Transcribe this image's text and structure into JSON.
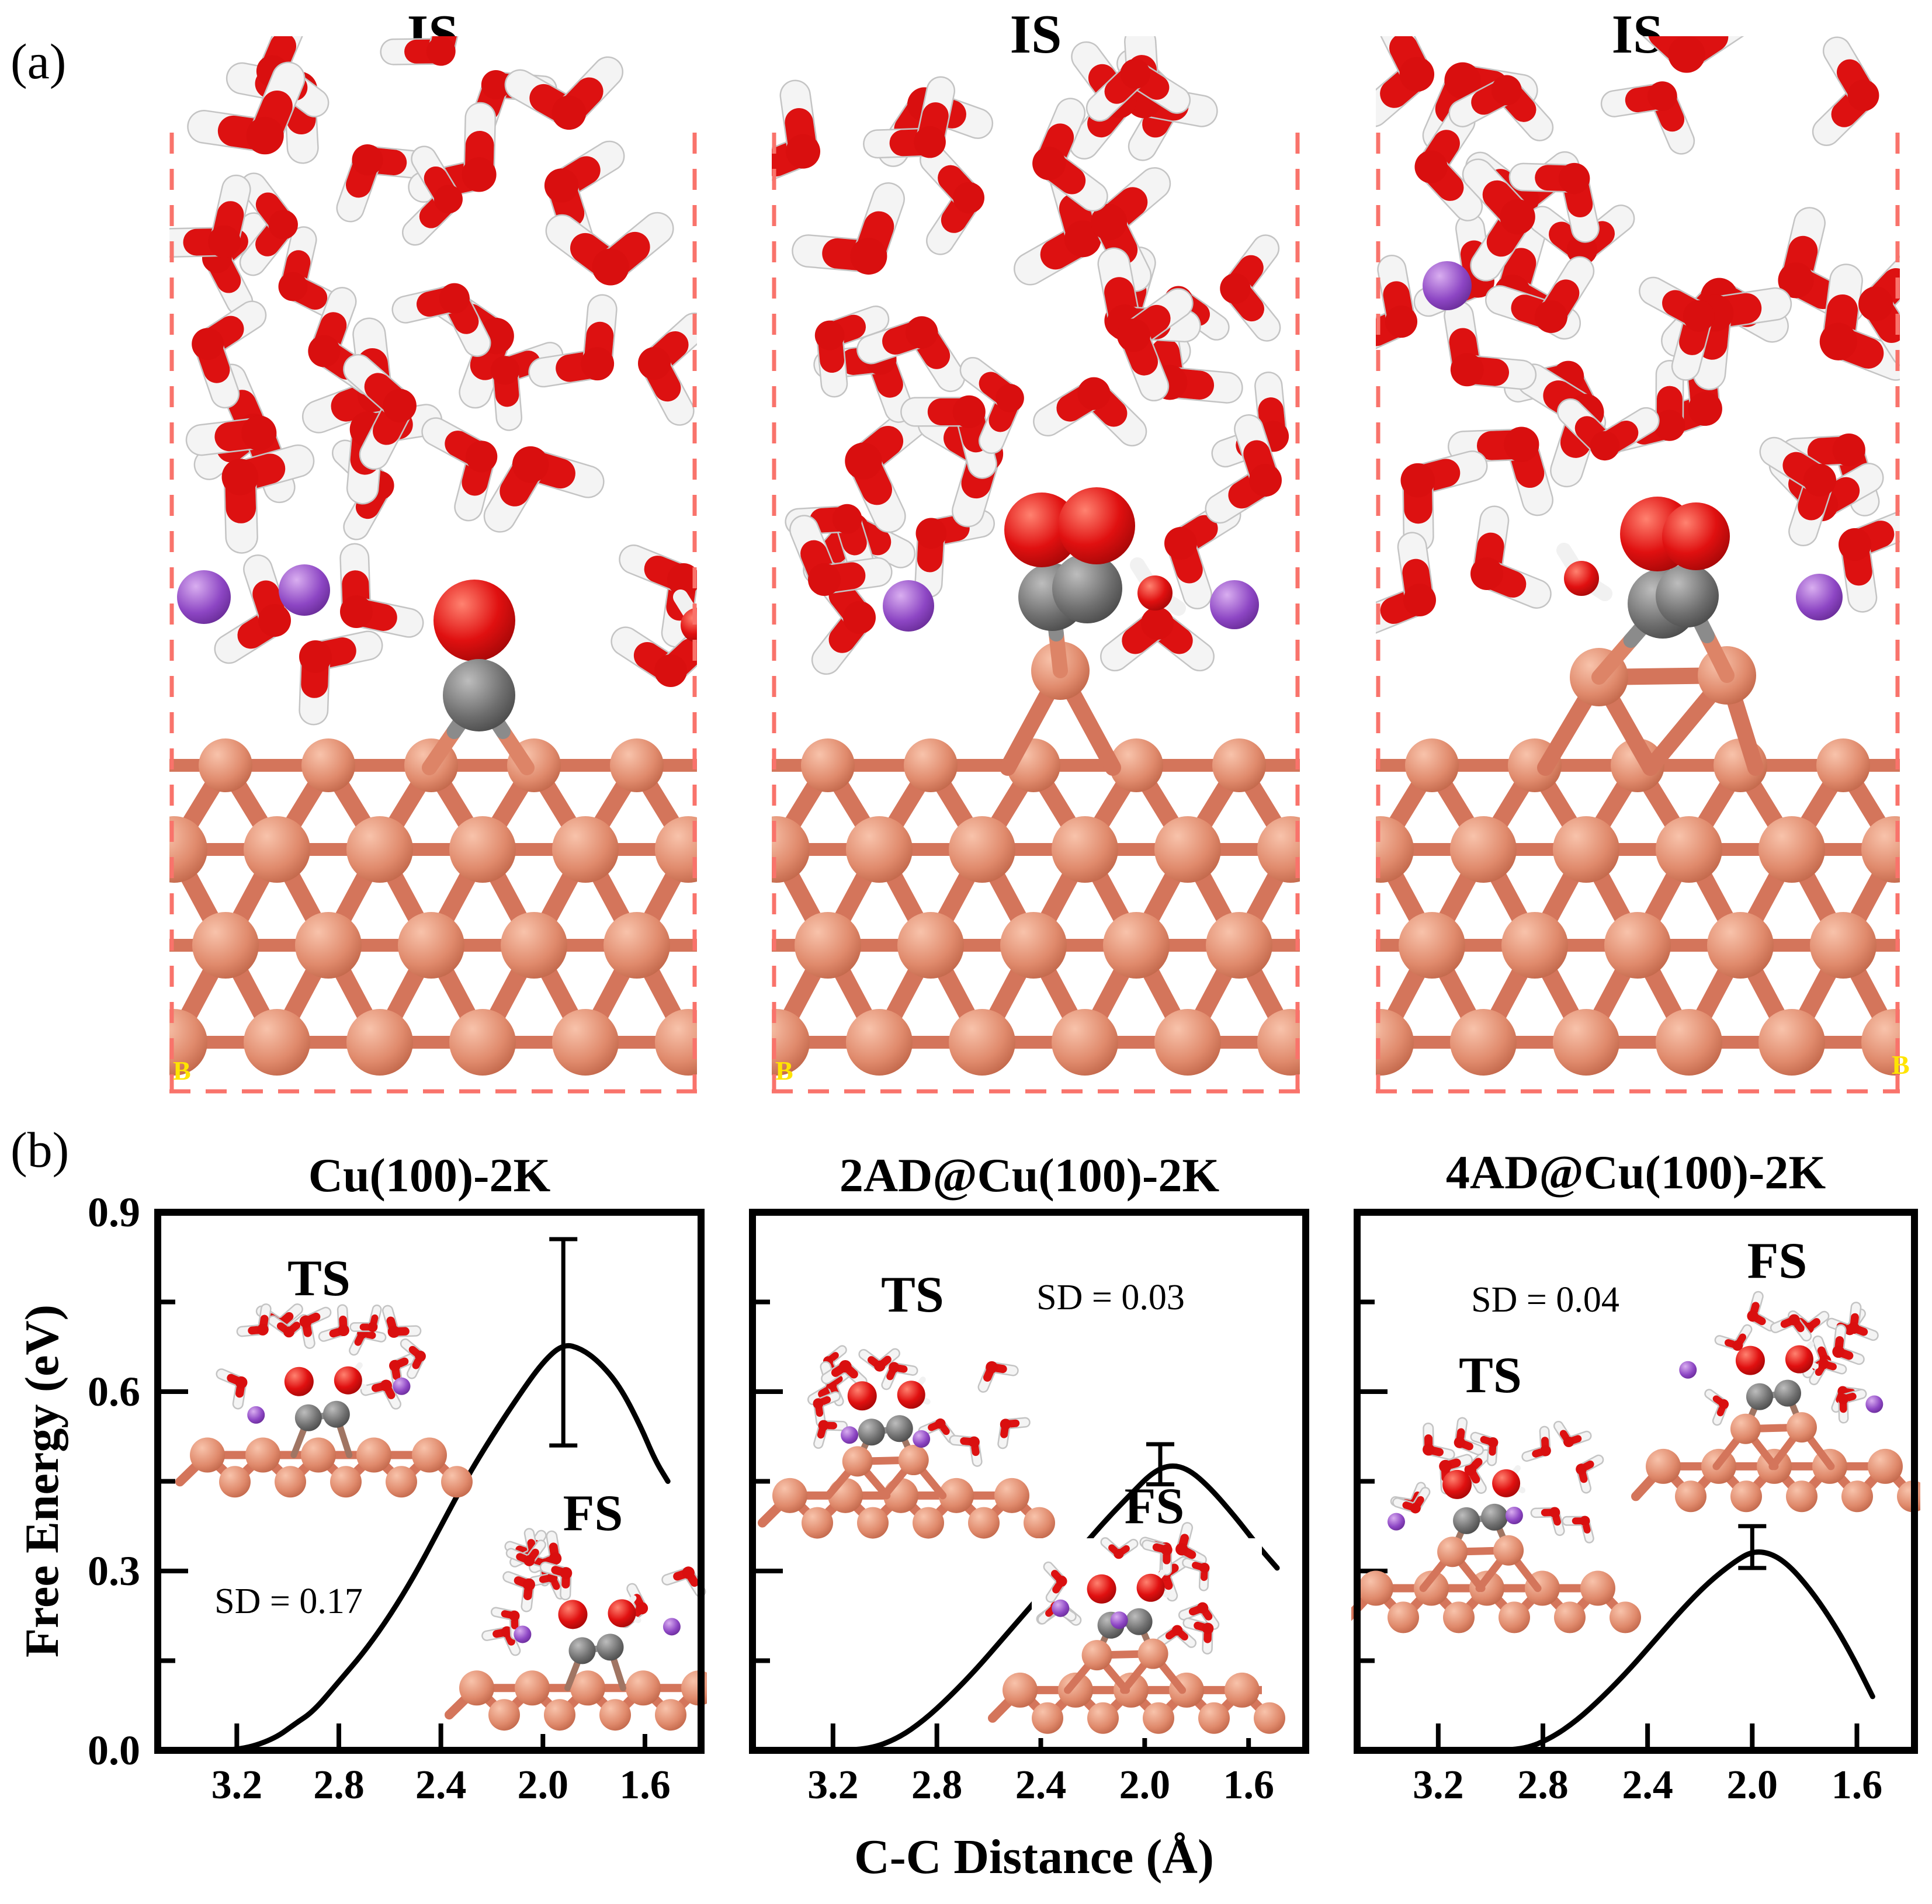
{
  "figure": {
    "panel_a_label": "(a)",
    "panel_b_label": "(b)"
  },
  "panel_a": {
    "snapshots": [
      {
        "title": "IS",
        "cell_tag": "B",
        "description": "CO adsorbed at bridge site on flat Cu(100) slab in liquid water with 2 K+ ions"
      },
      {
        "title": "IS",
        "cell_tag": "B",
        "description": "CO2 species bound atop a Cu adatom (2AD) on Cu(100) in liquid water with 2 K+ ions"
      },
      {
        "title": "IS",
        "cell_tag": "B",
        "description": "CO2 species bound atop a Cu adatom pair (4AD) on Cu(100) in liquid water with 2 K+ ions"
      }
    ],
    "colors": {
      "oxygen": "#dd1111",
      "hydrogen": "#f4f4f4",
      "copper": "#e08a6c",
      "carbon": "#6f6f6f",
      "potassium": "#8d46c4",
      "cell_border": "#f9736b",
      "cell_tag": "#ffe400"
    }
  },
  "panel_b": {
    "ylabel": "Free Energy (eV)",
    "xlabel": "C-C Distance (Å)",
    "y_tick_labels": [
      "0.9",
      "0.6",
      "0.3",
      "0.0"
    ]
  },
  "chart_data": [
    {
      "type": "line",
      "title": "Cu(100)-2K",
      "ts_label": "TS",
      "fs_label": "FS",
      "sd_label": "SD = 0.17",
      "xlabel": "C-C Distance (Å)",
      "ylabel": "Free Energy (eV)",
      "xlim": [
        3.51,
        1.38
      ],
      "ylim": [
        0.0,
        0.9
      ],
      "x_ticks": [
        3.2,
        2.8,
        2.4,
        2.0,
        1.6
      ],
      "y_ticks": [
        0.0,
        0.3,
        0.6,
        0.9
      ],
      "x": [
        3.5,
        3.3,
        3.17,
        3.05,
        2.97,
        2.9,
        2.8,
        2.7,
        2.6,
        2.5,
        2.4,
        2.3,
        2.2,
        2.1,
        2.0,
        1.92,
        1.85,
        1.78,
        1.7,
        1.62,
        1.56,
        1.51
      ],
      "y": [
        0.0,
        0.0,
        0.002,
        0.02,
        0.045,
        0.065,
        0.115,
        0.165,
        0.225,
        0.295,
        0.375,
        0.455,
        0.525,
        0.59,
        0.65,
        0.68,
        0.672,
        0.65,
        0.61,
        0.545,
        0.485,
        0.45
      ],
      "error_bar": {
        "x": 1.92,
        "y_low": 0.51,
        "y_high": 0.855
      }
    },
    {
      "type": "line",
      "title": "2AD@Cu(100)-2K",
      "ts_label": "TS",
      "fs_label": "FS",
      "sd_label": "SD = 0.03",
      "xlabel": "C-C Distance (Å)",
      "ylabel": "Free Energy (eV)",
      "xlim": [
        3.51,
        1.38
      ],
      "ylim": [
        0.0,
        0.9
      ],
      "x_ticks": [
        3.2,
        2.8,
        2.4,
        2.0,
        1.6
      ],
      "y_ticks": [
        0.0,
        0.3,
        0.6,
        0.9
      ],
      "x": [
        3.5,
        3.2,
        3.06,
        2.95,
        2.85,
        2.75,
        2.65,
        2.55,
        2.45,
        2.35,
        2.25,
        2.15,
        2.05,
        1.97,
        1.9,
        1.83,
        1.75,
        1.65,
        1.57,
        1.49
      ],
      "y": [
        0.0,
        0.0,
        0.002,
        0.02,
        0.05,
        0.09,
        0.135,
        0.185,
        0.235,
        0.285,
        0.335,
        0.385,
        0.43,
        0.465,
        0.478,
        0.47,
        0.44,
        0.39,
        0.345,
        0.305
      ],
      "error_bar": {
        "x": 1.94,
        "y_low": 0.445,
        "y_high": 0.512
      }
    },
    {
      "type": "line",
      "title": "4AD@Cu(100)-2K",
      "ts_label": "TS",
      "fs_label": "FS",
      "sd_label": "SD = 0.04",
      "xlabel": "C-C Distance (Å)",
      "ylabel": "Free Energy (eV)",
      "xlim": [
        3.51,
        1.38
      ],
      "ylim": [
        0.0,
        0.9
      ],
      "x_ticks": [
        3.2,
        2.8,
        2.4,
        2.0,
        1.6
      ],
      "y_ticks": [
        0.0,
        0.3,
        0.6,
        0.9
      ],
      "x": [
        3.5,
        3.0,
        2.87,
        2.77,
        2.67,
        2.57,
        2.47,
        2.37,
        2.27,
        2.17,
        2.07,
        2.0,
        1.93,
        1.86,
        1.78,
        1.7,
        1.62,
        1.54
      ],
      "y": [
        0.0,
        0.0,
        0.002,
        0.02,
        0.05,
        0.09,
        0.135,
        0.185,
        0.235,
        0.28,
        0.315,
        0.333,
        0.33,
        0.31,
        0.27,
        0.22,
        0.16,
        0.09
      ],
      "error_bar": {
        "x": 2.0,
        "y_low": 0.305,
        "y_high": 0.375
      }
    }
  ]
}
